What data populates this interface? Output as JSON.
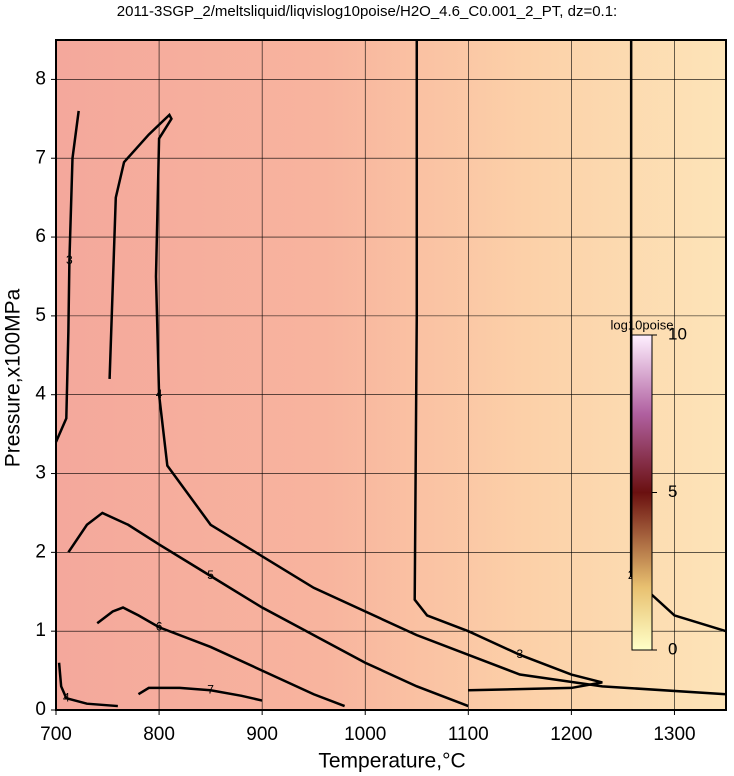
{
  "chart_data": {
    "type": "contour",
    "title": "2011-3SGP_2/meltsliquid/liqvislog10poise/H2O_4.6_C0.001_2_PT, dz=0.1:",
    "xlabel": "Temperature,°C",
    "ylabel": "Pressure,x100MPa",
    "xlim": [
      700,
      1350
    ],
    "ylim": [
      0,
      8.5
    ],
    "xticks": [
      700,
      800,
      900,
      1000,
      1100,
      1200,
      1300
    ],
    "yticks": [
      0,
      1,
      2,
      3,
      4,
      5,
      6,
      7,
      8
    ],
    "grid": true,
    "colorbar": {
      "label": "log10poise",
      "lim": [
        0,
        10
      ],
      "ticks": [
        0,
        5,
        10
      ]
    },
    "contours": [
      {
        "level": 4,
        "x": [
          752,
          758,
          766,
          790,
          810,
          812,
          800,
          797,
          800,
          808,
          850,
          950,
          1050,
          1150,
          1230,
          1350
        ],
        "y": [
          4.2,
          6.5,
          6.95,
          7.3,
          7.55,
          7.5,
          7.25,
          5.5,
          4.0,
          3.1,
          2.35,
          1.55,
          0.95,
          0.45,
          0.3,
          0.2
        ]
      },
      {
        "level": 3,
        "x": [
          1050,
          1050,
          1048,
          1060,
          1100,
          1150,
          1200,
          1230,
          1200,
          1100
        ],
        "y": [
          8.5,
          5.0,
          1.4,
          1.2,
          1.0,
          0.7,
          0.45,
          0.35,
          0.28,
          0.25
        ]
      },
      {
        "level": 2,
        "x": [
          1258,
          1258,
          1258,
          1300,
          1350
        ],
        "y": [
          8.5,
          5.5,
          1.7,
          1.2,
          1.0
        ]
      },
      {
        "level": 3,
        "x": [
          700,
          710,
          712,
          713,
          716,
          722
        ],
        "y": [
          3.4,
          3.7,
          4.8,
          5.7,
          7.0,
          7.6
        ]
      },
      {
        "level": 5,
        "x": [
          712,
          730,
          745,
          770,
          800,
          850,
          900,
          950,
          1000,
          1050,
          1100
        ],
        "y": [
          2.0,
          2.35,
          2.5,
          2.35,
          2.1,
          1.7,
          1.3,
          0.95,
          0.6,
          0.3,
          0.05
        ]
      },
      {
        "level": 6,
        "x": [
          740,
          755,
          765,
          780,
          800,
          850,
          900,
          950,
          980
        ],
        "y": [
          1.1,
          1.25,
          1.3,
          1.2,
          1.05,
          0.8,
          0.5,
          0.2,
          0.05
        ]
      },
      {
        "level": 7,
        "x": [
          780,
          790,
          820,
          850,
          880,
          900
        ],
        "y": [
          0.2,
          0.28,
          0.28,
          0.25,
          0.18,
          0.12
        ]
      },
      {
        "level": 4,
        "x": [
          703,
          705,
          710,
          730,
          760
        ],
        "y": [
          0.6,
          0.3,
          0.15,
          0.08,
          0.05
        ]
      }
    ]
  }
}
